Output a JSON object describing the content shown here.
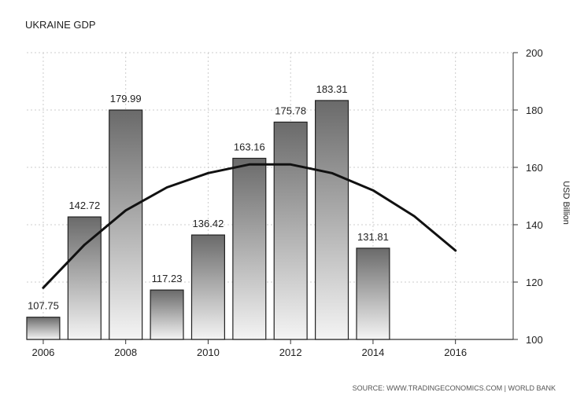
{
  "chart_data": {
    "type": "bar",
    "title": "UKRAINE GDP",
    "ylabel": "USD Billion",
    "source": "SOURCE: WWW.TRADINGECONOMICS.COM | WORLD BANK",
    "ylim": [
      100,
      200
    ],
    "yticks": [
      100,
      120,
      140,
      160,
      180,
      200
    ],
    "xlim": [
      2005.6,
      2017.4
    ],
    "xticks": [
      2006,
      2008,
      2010,
      2012,
      2014,
      2016
    ],
    "grid": true,
    "bar_series": {
      "x": [
        2006,
        2007,
        2008,
        2009,
        2010,
        2011,
        2012,
        2013,
        2014
      ],
      "values": [
        107.75,
        142.72,
        179.99,
        117.23,
        136.42,
        163.16,
        175.78,
        183.31,
        131.81
      ],
      "labels": [
        "107.75",
        "142.72",
        "179.99",
        "117.23",
        "136.42",
        "163.16",
        "175.78",
        "183.31",
        "131.81"
      ]
    },
    "trend_series": {
      "type": "line",
      "x": [
        2006,
        2007,
        2008,
        2009,
        2010,
        2011,
        2012,
        2013,
        2014,
        2015,
        2016
      ],
      "values": [
        118,
        133,
        145,
        153,
        158,
        161,
        161,
        158,
        152,
        143,
        131
      ]
    },
    "colors": {
      "bar_top": "#6a6a6a",
      "bar_bottom": "#f4f4f4",
      "trend": "#111111",
      "grid": "#cccccc"
    }
  }
}
